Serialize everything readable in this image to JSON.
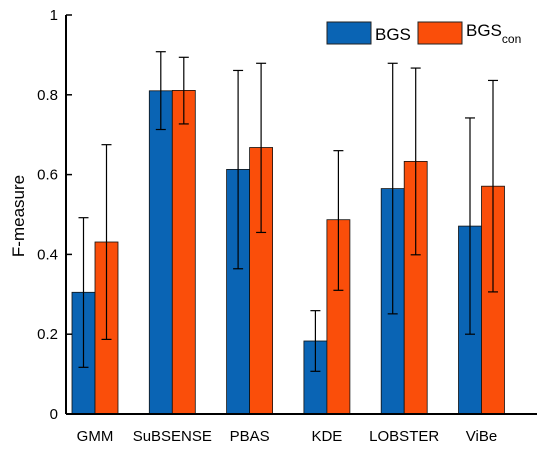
{
  "chart_data": {
    "type": "bar",
    "categories": [
      "GMM",
      "SuBSENSE",
      "PBAS",
      "KDE",
      "LOBSTER",
      "ViBe"
    ],
    "series": [
      {
        "name": "BGS",
        "color": "#0a64b4",
        "values": [
          0.305,
          0.81,
          0.613,
          0.183,
          0.565,
          0.471
        ],
        "error_low": [
          0.117,
          0.713,
          0.364,
          0.107,
          0.251,
          0.2
        ],
        "error_high": [
          0.492,
          0.908,
          0.861,
          0.259,
          0.879,
          0.742
        ]
      },
      {
        "name_main": "BGS",
        "name_sub": "con",
        "color": "#fa4e0a",
        "values": [
          0.431,
          0.811,
          0.668,
          0.487,
          0.633,
          0.571
        ],
        "error_low": [
          0.187,
          0.727,
          0.455,
          0.31,
          0.399,
          0.306
        ],
        "error_high": [
          0.675,
          0.894,
          0.879,
          0.66,
          0.867,
          0.836
        ]
      }
    ],
    "ylabel": "F-measure",
    "ylim": [
      0,
      1
    ],
    "yticks": [
      0,
      0.2,
      0.4,
      0.6,
      0.8,
      1
    ],
    "ytick_labels": [
      "0",
      "0.2",
      "0.4",
      "0.6",
      "0.8",
      "1"
    ],
    "legend_position": "top-right",
    "grid": false
  }
}
